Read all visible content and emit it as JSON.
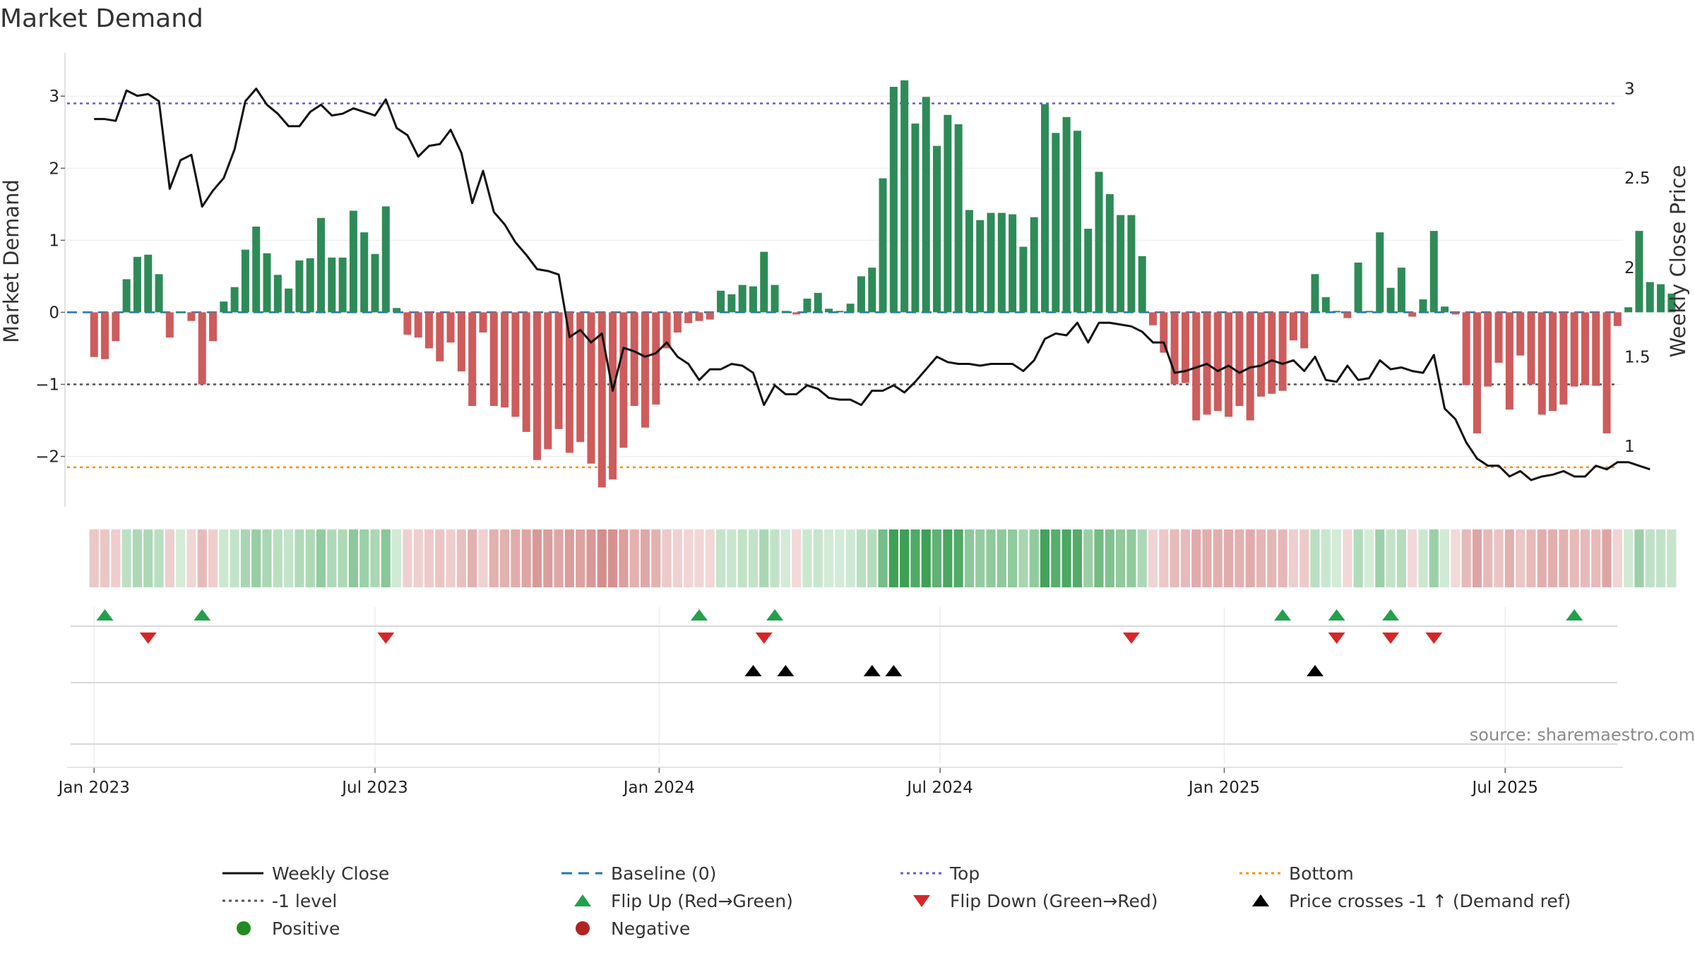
{
  "chart_data": {
    "type": "bar",
    "title": "Market Demand",
    "ylabel": "Market Demand",
    "y2label": "Weekly Close Price",
    "ylim": [
      -2.7,
      3.6
    ],
    "y2lim": [
      0.66,
      3.2
    ],
    "yticks": [
      -2,
      -1,
      0,
      1,
      2,
      3
    ],
    "y2ticks": [
      1,
      1.5,
      2,
      2.5,
      3
    ],
    "xlim_weeks": [
      -2.5,
      141.5
    ],
    "xticks": [
      {
        "label": "Jan 2023",
        "week": 0
      },
      {
        "label": "Jul 2023",
        "week": 26
      },
      {
        "label": "Jan 2024",
        "week": 52.3
      },
      {
        "label": "Jul 2024",
        "week": 78.3
      },
      {
        "label": "Jan 2025",
        "week": 104.6
      },
      {
        "label": "Jul 2025",
        "week": 130.6
      }
    ],
    "demand": [
      -0.62,
      -0.65,
      -0.4,
      0.46,
      0.77,
      0.8,
      0.53,
      -0.35,
      0.0,
      -0.12,
      -1.0,
      -0.4,
      0.15,
      0.35,
      0.87,
      1.19,
      0.82,
      0.52,
      0.33,
      0.72,
      0.75,
      1.31,
      0.76,
      0.76,
      1.41,
      1.11,
      0.81,
      1.47,
      0.06,
      -0.31,
      -0.35,
      -0.5,
      -0.68,
      -0.42,
      -0.82,
      -1.3,
      -0.28,
      -1.3,
      -1.32,
      -1.45,
      -1.66,
      -2.05,
      -1.9,
      -1.62,
      -1.95,
      -1.8,
      -2.1,
      -2.43,
      -2.32,
      -1.88,
      -1.3,
      -1.6,
      -1.28,
      -0.5,
      -0.28,
      -0.15,
      -0.12,
      -0.1,
      0.3,
      0.25,
      0.38,
      0.36,
      0.84,
      0.38,
      0.02,
      -0.03,
      0.19,
      0.27,
      0.05,
      0.02,
      0.12,
      0.5,
      0.62,
      1.86,
      3.13,
      3.22,
      2.62,
      2.99,
      2.31,
      2.74,
      2.61,
      1.42,
      1.28,
      1.38,
      1.38,
      1.36,
      0.91,
      1.32,
      2.89,
      2.49,
      2.71,
      2.52,
      1.16,
      1.95,
      1.64,
      1.35,
      1.35,
      0.78,
      -0.18,
      -0.56,
      -1.0,
      -0.98,
      -1.5,
      -1.42,
      -1.37,
      -1.45,
      -1.3,
      -1.5,
      -1.17,
      -1.13,
      -1.09,
      -0.39,
      -0.5,
      0.53,
      0.21,
      0.02,
      -0.08,
      0.69,
      0.02,
      1.11,
      0.34,
      0.62,
      -0.06,
      0.18,
      1.13,
      0.08,
      -0.03,
      -1.01,
      -1.68,
      -1.03,
      -0.7,
      -1.35,
      -0.6,
      -1.0,
      -1.42,
      -1.37,
      -1.28,
      -1.03,
      -1.01,
      -1.02,
      -1.68,
      -0.19,
      0.07,
      1.13,
      0.42,
      0.39,
      0.26
    ],
    "close": [
      2.83,
      2.83,
      2.82,
      2.99,
      2.96,
      2.97,
      2.93,
      2.44,
      2.6,
      2.63,
      2.34,
      2.43,
      2.5,
      2.66,
      2.93,
      3.0,
      2.91,
      2.86,
      2.79,
      2.79,
      2.87,
      2.91,
      2.85,
      2.86,
      2.89,
      2.87,
      2.85,
      2.94,
      2.78,
      2.74,
      2.62,
      2.68,
      2.69,
      2.77,
      2.64,
      2.36,
      2.54,
      2.31,
      2.24,
      2.14,
      2.07,
      1.99,
      1.98,
      1.96,
      1.61,
      1.65,
      1.58,
      1.63,
      1.31,
      1.55,
      1.53,
      1.5,
      1.52,
      1.58,
      1.5,
      1.46,
      1.37,
      1.43,
      1.43,
      1.46,
      1.45,
      1.41,
      1.23,
      1.34,
      1.29,
      1.29,
      1.34,
      1.32,
      1.27,
      1.26,
      1.26,
      1.23,
      1.31,
      1.31,
      1.34,
      1.3,
      1.36,
      1.43,
      1.5,
      1.47,
      1.46,
      1.46,
      1.45,
      1.46,
      1.46,
      1.46,
      1.42,
      1.48,
      1.6,
      1.63,
      1.62,
      1.69,
      1.58,
      1.69,
      1.69,
      1.68,
      1.67,
      1.64,
      1.58,
      1.58,
      1.41,
      1.42,
      1.44,
      1.46,
      1.42,
      1.45,
      1.41,
      1.44,
      1.45,
      1.48,
      1.46,
      1.48,
      1.42,
      1.5,
      1.37,
      1.36,
      1.45,
      1.37,
      1.38,
      1.48,
      1.43,
      1.44,
      1.42,
      1.41,
      1.51,
      1.21,
      1.15,
      1.02,
      0.93,
      0.89,
      0.89,
      0.83,
      0.86,
      0.81,
      0.83,
      0.84,
      0.86,
      0.83,
      0.83,
      0.89,
      0.87,
      0.91,
      0.91,
      0.89,
      0.87
    ],
    "levels": {
      "top": 2.9,
      "bottom": -2.15,
      "minus_one": -1,
      "baseline": 0
    },
    "flip_up_weeks": [
      1,
      10,
      56,
      63,
      110,
      115,
      120,
      137
    ],
    "flip_down_weeks": [
      5,
      27,
      62,
      96,
      115,
      120,
      124
    ],
    "price_cross_weeks": [
      61,
      64,
      72,
      74,
      113
    ],
    "colors": {
      "positive": "#2e8b57",
      "negative": "#cd5c5c",
      "close_line": "#111111",
      "baseline": "#1f77b4",
      "top": "#6a5acd",
      "bottom": "#ff8c00",
      "minus_one": "#555555",
      "flip_up": "#22a04b",
      "flip_down": "#d62728",
      "cross": "#000000",
      "positive_dot": "#228b22",
      "negative_dot": "#b22222",
      "strip_pos_light": "#d4ecd8",
      "strip_pos_dark": "#3da055",
      "strip_neg_light": "#f3dada",
      "strip_neg_dark": "#cc7c7a"
    },
    "legend": [
      {
        "key": "close",
        "label": "Weekly Close",
        "symbol": "line-solid",
        "color": "#111111"
      },
      {
        "key": "baseline",
        "label": "Baseline (0)",
        "symbol": "line-dash",
        "color": "#1f77b4"
      },
      {
        "key": "top",
        "label": "Top",
        "symbol": "line-dot",
        "color": "#6a5acd"
      },
      {
        "key": "bottom",
        "label": "Bottom",
        "symbol": "line-dot",
        "color": "#ff8c00"
      },
      {
        "key": "minus_one",
        "label": "-1 level",
        "symbol": "line-dot",
        "color": "#555555"
      },
      {
        "key": "flip_up",
        "label": "Flip Up (Red→Green)",
        "symbol": "tri-up",
        "color": "#22a04b"
      },
      {
        "key": "flip_down",
        "label": "Flip Down (Green→Red)",
        "symbol": "tri-down",
        "color": "#d62728"
      },
      {
        "key": "cross",
        "label": "Price crosses -1 ↑ (Demand ref)",
        "symbol": "tri-up",
        "color": "#000000"
      },
      {
        "key": "positive",
        "label": "Positive",
        "symbol": "dot",
        "color": "#228b22"
      },
      {
        "key": "negative",
        "label": "Negative",
        "symbol": "dot",
        "color": "#b22222"
      }
    ],
    "source": "source: sharemaestro.com"
  }
}
